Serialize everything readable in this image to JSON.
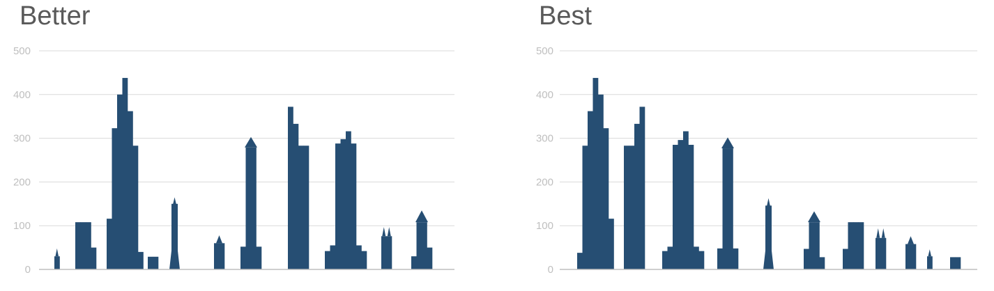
{
  "chart_data": [
    {
      "type": "bar",
      "title": "Better",
      "ylim": [
        0,
        500
      ],
      "yticks": [
        "0",
        "100",
        "200",
        "300",
        "400",
        "500"
      ],
      "grid": true,
      "color": "#264E73",
      "buildings": [
        {
          "shape": "spire",
          "heights": [
            30
          ],
          "peak": 48
        },
        {
          "shape": "stepped",
          "heights": [
            108,
            108,
            108,
            50
          ]
        },
        {
          "shape": "stepped",
          "heights": [
            116,
            323,
            400,
            438,
            362,
            283,
            40
          ]
        },
        {
          "shape": "stepped",
          "heights": [
            29,
            29
          ]
        },
        {
          "shape": "tower",
          "heights": [
            150,
            150
          ],
          "peak": 165
        },
        {
          "shape": "spire",
          "heights": [
            60,
            60
          ],
          "peak": 78
        },
        {
          "shape": "tower",
          "heights": [
            52,
            279,
            279,
            52
          ],
          "peak": 303
        },
        {
          "shape": "stepped",
          "heights": [
            372,
            333,
            283,
            283
          ]
        },
        {
          "shape": "stepped",
          "heights": [
            42,
            55,
            288,
            298,
            316,
            288,
            55,
            42
          ]
        },
        {
          "shape": "twin",
          "heights": [
            76,
            76
          ],
          "peak": 97
        },
        {
          "shape": "tower",
          "heights": [
            30,
            108,
            108,
            50
          ],
          "peak": 135
        }
      ]
    },
    {
      "type": "bar",
      "title": "Best",
      "ylim": [
        0,
        500
      ],
      "yticks": [
        "0",
        "100",
        "200",
        "300",
        "400",
        "500"
      ],
      "grid": true,
      "color": "#264E73",
      "buildings": [
        {
          "shape": "stepped",
          "heights": [
            38,
            283,
            362,
            438,
            400,
            323,
            116
          ]
        },
        {
          "shape": "stepped",
          "heights": [
            283,
            283,
            333,
            372
          ]
        },
        {
          "shape": "stepped",
          "heights": [
            42,
            52,
            285,
            296,
            316,
            285,
            52,
            42
          ]
        },
        {
          "shape": "tower",
          "heights": [
            48,
            277,
            277,
            48
          ],
          "peak": 302
        },
        {
          "shape": "tower",
          "heights": [
            146,
            146
          ],
          "peak": 163
        },
        {
          "shape": "tower",
          "heights": [
            47,
            108,
            108,
            28
          ],
          "peak": 133
        },
        {
          "shape": "stepped",
          "heights": [
            47,
            108,
            108,
            108
          ]
        },
        {
          "shape": "twin",
          "heights": [
            72,
            72
          ],
          "peak": 94
        },
        {
          "shape": "spire",
          "heights": [
            58,
            58
          ],
          "peak": 76
        },
        {
          "shape": "spire",
          "heights": [
            30
          ],
          "peak": 46
        },
        {
          "shape": "stepped",
          "heights": [
            28,
            28
          ]
        }
      ]
    }
  ]
}
